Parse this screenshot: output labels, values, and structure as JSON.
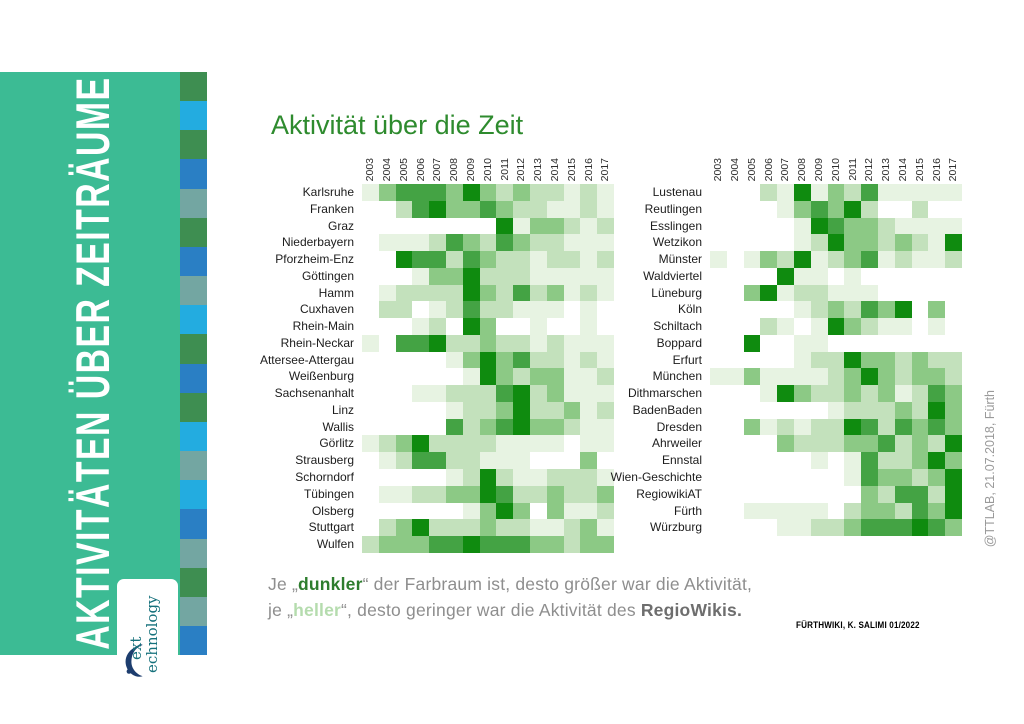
{
  "sidebar": {
    "title": "AKTIVITÄTEN ÜBER ZEITRÄUME",
    "background": "#3cbb94",
    "strip_colors": [
      "#3e8e51",
      "#23ace0",
      "#3e8e51",
      "#2a7fc4",
      "#73a6a2",
      "#3e8e51",
      "#2a7fc4",
      "#73a6a2",
      "#23ace0",
      "#3e8e51",
      "#2a7fc4",
      "#3e8e51",
      "#23ace0",
      "#73a6a2",
      "#23ace0",
      "#2a7fc4",
      "#73a6a2",
      "#3e8e51",
      "#73a6a2",
      "#2a7fc4"
    ],
    "logo": {
      "line1": "ext",
      "line2": "echnology"
    }
  },
  "main": {
    "title": "Aktivität über die Zeit",
    "title_color": "#2e8b2e"
  },
  "caption": {
    "l1a": "Je „",
    "l1_dunkler": "dunkler",
    "l1b": "“ der Farbraum ist, desto größer war die Aktivität,",
    "l2a": "je „",
    "l2_heller": "heller",
    "l2b": "“, desto geringer war die Aktivität des ",
    "l2_regiowikis": "RegioWikis."
  },
  "credit": "FÜRTHWIKI, K. SALIMI 01/2022",
  "watermark": "@TTLAB, 21.07.2018, Fürth",
  "chart_data": [
    {
      "type": "heatmap",
      "position": "left",
      "title": "Aktivität über die Zeit",
      "x": [
        "2003",
        "2004",
        "2005",
        "2006",
        "2007",
        "2008",
        "2009",
        "2010",
        "2011",
        "2012",
        "2013",
        "2014",
        "2015",
        "2016",
        "2017"
      ],
      "rows": [
        "Karlsruhe",
        "Franken",
        "Graz",
        "Niederbayern",
        "Pforzheim-Enz",
        "Göttingen",
        "Hamm",
        "Cuxhaven",
        "Rhein-Main",
        "Rhein-Neckar",
        "Attersee-Attergau",
        "Weißenburg",
        "Sachsenanhalt",
        "Linz",
        "Wallis",
        "Görlitz",
        "Strausberg",
        "Schorndorf",
        "Tübingen",
        "Olsberg",
        "Stuttgart",
        "Wulfen"
      ],
      "values": [
        [
          1,
          3,
          4,
          4,
          4,
          3,
          5,
          3,
          2,
          3,
          2,
          2,
          1,
          2,
          1
        ],
        [
          0,
          0,
          2,
          4,
          5,
          3,
          3,
          4,
          3,
          2,
          2,
          1,
          1,
          2,
          1
        ],
        [
          0,
          0,
          0,
          0,
          0,
          0,
          0,
          0,
          5,
          1,
          3,
          3,
          2,
          1,
          2
        ],
        [
          0,
          1,
          1,
          1,
          2,
          4,
          3,
          2,
          4,
          3,
          2,
          2,
          1,
          1,
          1
        ],
        [
          0,
          0,
          5,
          4,
          4,
          2,
          4,
          3,
          2,
          2,
          1,
          2,
          2,
          1,
          2
        ],
        [
          0,
          0,
          0,
          1,
          3,
          3,
          5,
          2,
          2,
          2,
          1,
          1,
          1,
          1,
          1
        ],
        [
          0,
          1,
          2,
          2,
          2,
          2,
          5,
          3,
          2,
          4,
          2,
          3,
          1,
          2,
          1
        ],
        [
          0,
          2,
          2,
          0,
          1,
          2,
          4,
          2,
          2,
          1,
          1,
          1,
          0,
          1,
          0
        ],
        [
          0,
          0,
          0,
          1,
          2,
          0,
          5,
          3,
          0,
          0,
          1,
          0,
          0,
          1,
          0
        ],
        [
          1,
          0,
          4,
          4,
          5,
          2,
          2,
          3,
          2,
          2,
          1,
          2,
          1,
          1,
          1
        ],
        [
          0,
          0,
          0,
          0,
          0,
          1,
          3,
          5,
          3,
          4,
          2,
          2,
          1,
          2,
          1
        ],
        [
          0,
          0,
          0,
          0,
          0,
          0,
          1,
          5,
          3,
          2,
          3,
          3,
          1,
          1,
          2
        ],
        [
          0,
          0,
          0,
          1,
          1,
          2,
          2,
          2,
          4,
          5,
          2,
          3,
          1,
          1,
          1
        ],
        [
          0,
          0,
          0,
          0,
          0,
          1,
          2,
          2,
          3,
          5,
          2,
          2,
          3,
          1,
          2
        ],
        [
          0,
          0,
          0,
          0,
          0,
          4,
          2,
          3,
          4,
          5,
          3,
          3,
          2,
          1,
          1
        ],
        [
          1,
          2,
          3,
          5,
          2,
          2,
          2,
          2,
          1,
          1,
          1,
          1,
          0,
          1,
          1
        ],
        [
          0,
          1,
          2,
          4,
          4,
          2,
          2,
          1,
          1,
          1,
          0,
          0,
          0,
          3,
          0
        ],
        [
          0,
          0,
          0,
          0,
          0,
          1,
          2,
          5,
          2,
          1,
          1,
          2,
          2,
          2,
          1
        ],
        [
          0,
          1,
          1,
          2,
          2,
          3,
          3,
          5,
          4,
          2,
          2,
          3,
          2,
          2,
          3
        ],
        [
          0,
          0,
          0,
          0,
          0,
          0,
          1,
          3,
          5,
          3,
          0,
          3,
          1,
          1,
          2
        ],
        [
          0,
          2,
          3,
          5,
          2,
          2,
          2,
          3,
          2,
          2,
          1,
          1,
          2,
          3,
          1
        ],
        [
          2,
          3,
          3,
          3,
          4,
          4,
          5,
          4,
          4,
          4,
          3,
          3,
          2,
          3,
          3
        ]
      ],
      "value_scale": "Aktivitätsstufen 0 (keine Aktivität, weiß) bis 5 (höchste Aktivität, dunkelgrün)",
      "colors": [
        "#ffffff",
        "#e7f3e2",
        "#c3e1bc",
        "#8cc985",
        "#44a344",
        "#0f8b0f"
      ]
    },
    {
      "type": "heatmap",
      "position": "right",
      "title": "Aktivität über die Zeit",
      "x": [
        "2003",
        "2004",
        "2005",
        "2006",
        "2007",
        "2008",
        "2009",
        "2010",
        "2011",
        "2012",
        "2013",
        "2014",
        "2015",
        "2016",
        "2017"
      ],
      "rows": [
        "Lustenau",
        "Reutlingen",
        "Esslingen",
        "Wetzikon",
        "Münster",
        "Waldviertel",
        "Lüneburg",
        "Köln",
        "Schiltach",
        "Boppard",
        "Erfurt",
        "München",
        "Dithmarschen",
        "BadenBaden",
        "Dresden",
        "Ahrweiler",
        "Ennstal",
        "Wien-Geschichte",
        "RegiowikiAT",
        "Fürth",
        "Würzburg"
      ],
      "values": [
        [
          0,
          0,
          0,
          2,
          1,
          5,
          1,
          3,
          2,
          4,
          1,
          1,
          1,
          1,
          1
        ],
        [
          0,
          0,
          0,
          0,
          1,
          3,
          4,
          3,
          5,
          2,
          0,
          0,
          2,
          0,
          0
        ],
        [
          0,
          0,
          0,
          0,
          0,
          1,
          5,
          4,
          3,
          3,
          2,
          1,
          1,
          1,
          1
        ],
        [
          0,
          0,
          0,
          0,
          0,
          1,
          2,
          5,
          3,
          3,
          2,
          3,
          2,
          1,
          5
        ],
        [
          1,
          0,
          1,
          3,
          2,
          5,
          1,
          2,
          3,
          4,
          1,
          2,
          1,
          1,
          2
        ],
        [
          0,
          0,
          0,
          0,
          5,
          1,
          1,
          0,
          1,
          0,
          0,
          0,
          0,
          0,
          0
        ],
        [
          0,
          0,
          3,
          5,
          1,
          2,
          2,
          1,
          1,
          1,
          0,
          0,
          0,
          0,
          0
        ],
        [
          0,
          0,
          0,
          0,
          0,
          1,
          2,
          3,
          2,
          4,
          3,
          5,
          0,
          3,
          0
        ],
        [
          0,
          0,
          0,
          2,
          1,
          0,
          1,
          5,
          3,
          2,
          1,
          1,
          0,
          1,
          0
        ],
        [
          0,
          0,
          5,
          0,
          0,
          1,
          1,
          0,
          0,
          0,
          0,
          0,
          0,
          0,
          0
        ],
        [
          0,
          0,
          0,
          0,
          0,
          1,
          2,
          2,
          5,
          3,
          3,
          2,
          3,
          2,
          2
        ],
        [
          1,
          1,
          3,
          1,
          1,
          1,
          1,
          2,
          3,
          5,
          3,
          2,
          3,
          3,
          2
        ],
        [
          0,
          0,
          0,
          1,
          5,
          3,
          2,
          2,
          3,
          2,
          3,
          1,
          2,
          4,
          3
        ],
        [
          0,
          0,
          0,
          0,
          0,
          0,
          0,
          1,
          2,
          2,
          2,
          3,
          2,
          5,
          3
        ],
        [
          0,
          0,
          3,
          1,
          2,
          1,
          2,
          2,
          5,
          4,
          2,
          4,
          3,
          4,
          3
        ],
        [
          0,
          0,
          0,
          0,
          3,
          2,
          2,
          2,
          3,
          3,
          4,
          2,
          3,
          2,
          5
        ],
        [
          0,
          0,
          0,
          0,
          0,
          0,
          1,
          0,
          1,
          4,
          2,
          2,
          3,
          5,
          3
        ],
        [
          0,
          0,
          0,
          0,
          0,
          0,
          0,
          0,
          1,
          4,
          3,
          3,
          2,
          3,
          5
        ],
        [
          0,
          0,
          0,
          0,
          0,
          0,
          0,
          0,
          0,
          3,
          2,
          4,
          4,
          2,
          5
        ],
        [
          0,
          0,
          1,
          1,
          1,
          1,
          1,
          0,
          2,
          3,
          3,
          2,
          4,
          3,
          5
        ],
        [
          0,
          0,
          0,
          0,
          1,
          1,
          2,
          2,
          3,
          4,
          4,
          4,
          5,
          4,
          3
        ]
      ],
      "value_scale": "Aktivitätsstufen 0 (keine Aktivität, weiß) bis 5 (höchste Aktivität, dunkelgrün)",
      "colors": [
        "#ffffff",
        "#e7f3e2",
        "#c3e1bc",
        "#8cc985",
        "#44a344",
        "#0f8b0f"
      ]
    }
  ]
}
